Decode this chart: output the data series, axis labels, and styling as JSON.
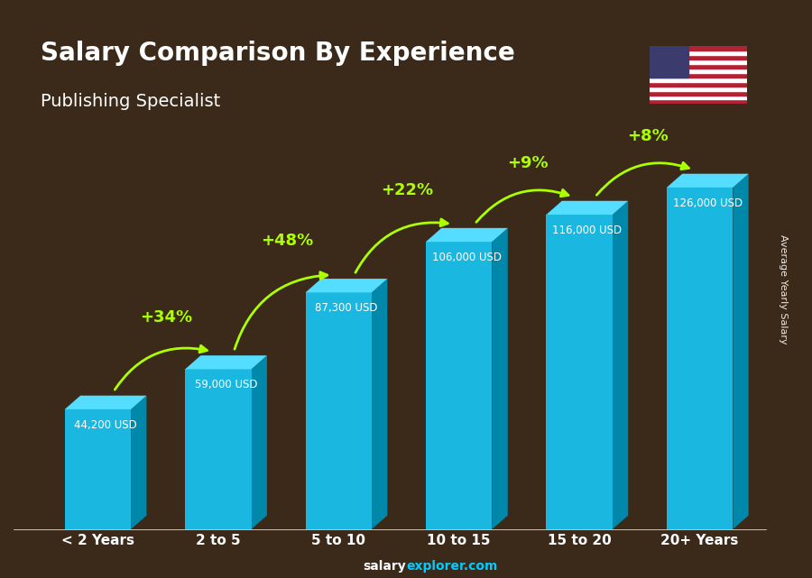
{
  "title": "Salary Comparison By Experience",
  "subtitle": "Publishing Specialist",
  "categories": [
    "< 2 Years",
    "2 to 5",
    "5 to 10",
    "10 to 15",
    "15 to 20",
    "20+ Years"
  ],
  "values": [
    44200,
    59000,
    87300,
    106000,
    116000,
    126000
  ],
  "salary_labels": [
    "44,200 USD",
    "59,000 USD",
    "87,300 USD",
    "106,000 USD",
    "116,000 USD",
    "126,000 USD"
  ],
  "pct_changes": [
    "+34%",
    "+48%",
    "+22%",
    "+9%",
    "+8%"
  ],
  "bar_color_top": "#00BFFF",
  "bar_color_main": "#00AADD",
  "bar_color_side": "#0077AA",
  "bar_color_bottom": "#005588",
  "pct_color": "#AAFF00",
  "salary_label_color": "#FFFFFF",
  "title_color": "#FFFFFF",
  "subtitle_color": "#FFFFFF",
  "xlabel_color": "#FFFFFF",
  "ylabel_text": "Average Yearly Salary",
  "footer_text": "salaryexplorer.com",
  "background_color": "#3B2A1A",
  "ylim": [
    0,
    145000
  ],
  "bar_width": 0.55
}
